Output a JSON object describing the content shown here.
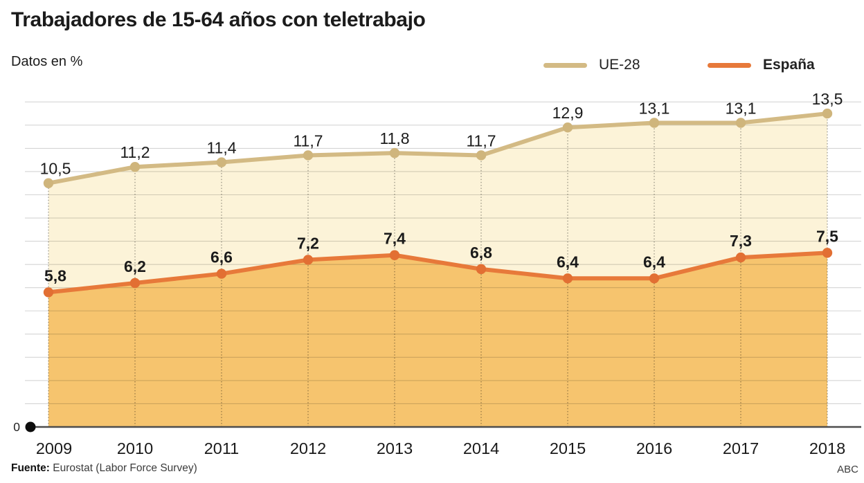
{
  "header": {
    "title": "Trabajadores de 15-64 años con teletrabajo",
    "subtitle": "Datos en %"
  },
  "legend": [
    {
      "label": "UE-28",
      "color": "#d3ba84",
      "weight": 400
    },
    {
      "label": "España",
      "color": "#e7793a",
      "weight": 700
    }
  ],
  "chart_data": {
    "type": "line",
    "title": "Trabajadores de 15-64 años con teletrabajo",
    "xlabel": "",
    "ylabel": "Datos en %",
    "categories": [
      "2009",
      "2010",
      "2011",
      "2012",
      "2013",
      "2014",
      "2015",
      "2016",
      "2017",
      "2018"
    ],
    "series": [
      {
        "name": "UE-28",
        "values": [
          10.5,
          11.2,
          11.4,
          11.7,
          11.8,
          11.7,
          12.9,
          13.1,
          13.1,
          13.5
        ],
        "line_color": "#d3ba84",
        "marker_color": "#cfb57c",
        "fill_color": "#fcf3d8",
        "label_weight": "400"
      },
      {
        "name": "España",
        "values": [
          5.8,
          6.2,
          6.6,
          7.2,
          7.4,
          6.8,
          6.4,
          6.4,
          7.3,
          7.5
        ],
        "line_color": "#e7793a",
        "marker_color": "#e26f33",
        "fill_color": "#f6c46e",
        "label_weight": "700"
      }
    ],
    "ylim": [
      0,
      14.5
    ],
    "grid_step": 1,
    "grid": "horizontal gridlines every 1%, dotted vertical guide at each year",
    "legend_position": "top-right",
    "origin_label": "0",
    "decimal_separator": ","
  },
  "footer": {
    "source_label": "Fuente:",
    "source_text": " Eurostat (Labor Force Survey)",
    "credit": "ABC"
  }
}
